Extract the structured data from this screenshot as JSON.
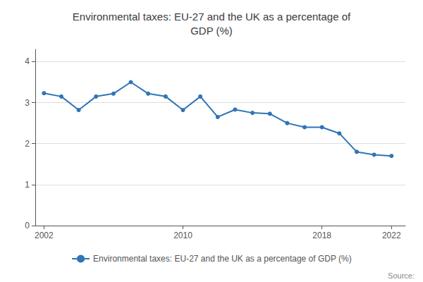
{
  "chart_data": {
    "type": "line",
    "title": "Environmental taxes: EU-27 and the UK as a percentage of\nGDP (%)",
    "x": [
      2002,
      2003,
      2004,
      2005,
      2006,
      2007,
      2008,
      2009,
      2010,
      2011,
      2012,
      2013,
      2014,
      2015,
      2016,
      2017,
      2018,
      2019,
      2020,
      2021,
      2022
    ],
    "series": [
      {
        "name": "Environmental taxes: EU-27 and the UK as a percentage of GDP (%)",
        "color": "#2E75B6",
        "marker": "circle",
        "values": [
          3.23,
          3.15,
          2.82,
          3.15,
          3.22,
          3.5,
          3.22,
          3.15,
          2.82,
          3.15,
          2.65,
          2.83,
          2.75,
          2.73,
          2.5,
          2.4,
          2.4,
          2.25,
          1.8,
          1.73,
          1.7
        ]
      }
    ],
    "xlim": [
      2001.5,
      2022.8
    ],
    "xticks": [
      2002,
      2010,
      2018,
      2022
    ],
    "ylim": [
      0,
      4.3
    ],
    "yticks": [
      0,
      1,
      2,
      3,
      4
    ],
    "grid": true,
    "legend": "bottom",
    "annotations": [
      "Source:"
    ]
  }
}
